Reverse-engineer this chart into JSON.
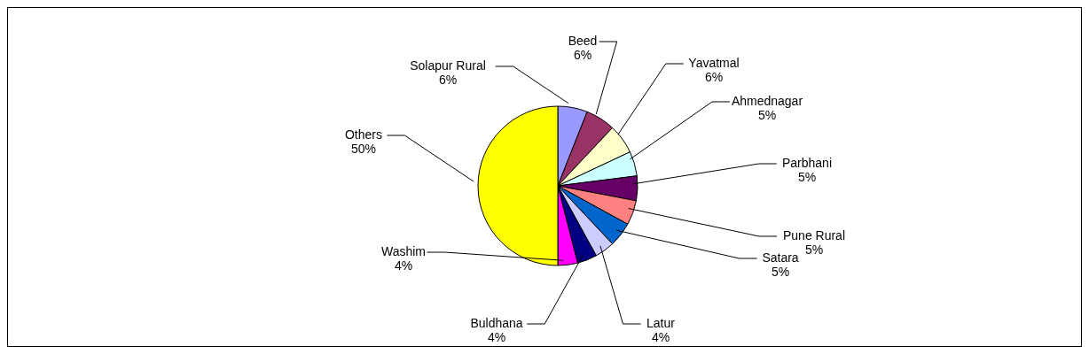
{
  "chart_data": {
    "type": "pie",
    "categories": [
      "Solapur Rural",
      "Beed",
      "Yavatmal",
      "Ahmednagar",
      "Parbhani",
      "Pune Rural",
      "Satara",
      "Latur",
      "Buldhana",
      "Washim",
      "Others"
    ],
    "values": [
      6,
      6,
      6,
      5,
      5,
      5,
      5,
      4,
      4,
      4,
      50
    ],
    "colors": [
      "#9999ff",
      "#993366",
      "#ffffcc",
      "#ccffff",
      "#660066",
      "#ff8080",
      "#0066cc",
      "#ccccff",
      "#000080",
      "#ff00ff",
      "#ffff00"
    ],
    "value_labels": [
      "6%",
      "6%",
      "6%",
      "5%",
      "5%",
      "5%",
      "5%",
      "4%",
      "4%",
      "4%",
      "50%"
    ],
    "legend": false
  }
}
